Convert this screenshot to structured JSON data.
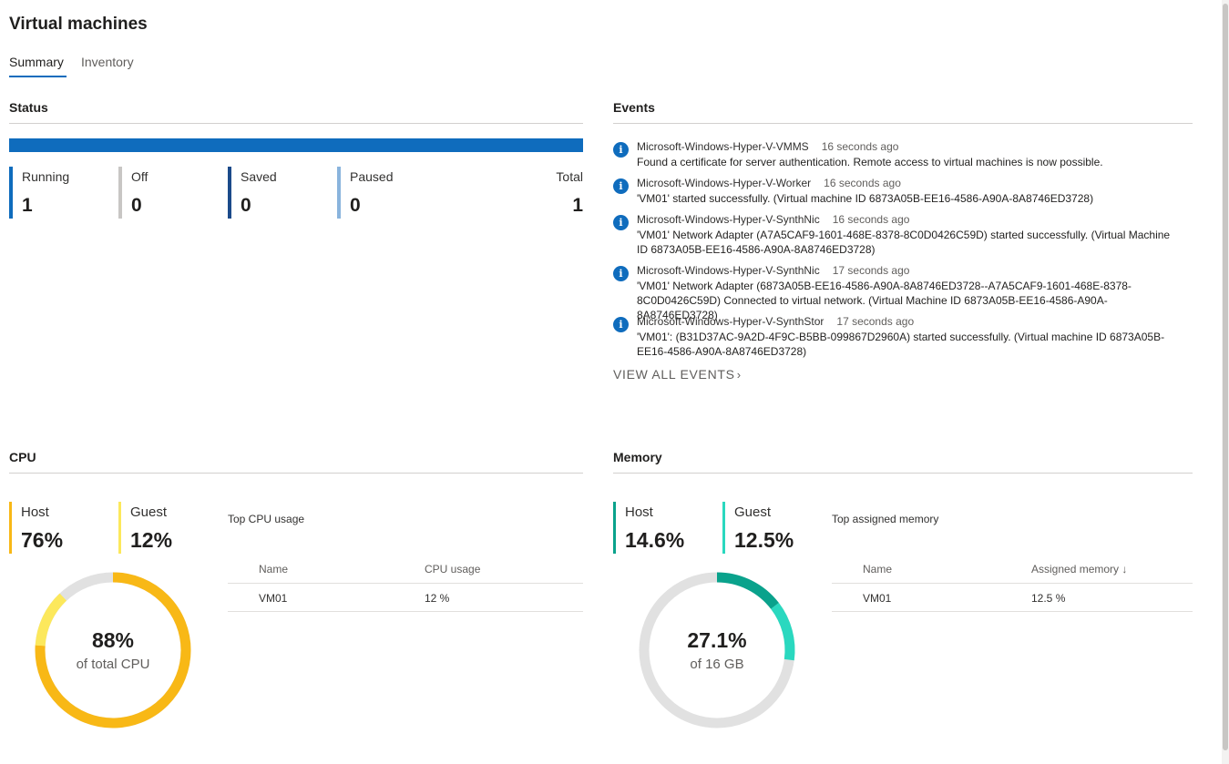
{
  "page": {
    "title": "Virtual machines"
  },
  "tabs": [
    {
      "label": "Summary",
      "active": true
    },
    {
      "label": "Inventory",
      "active": false
    }
  ],
  "status": {
    "title": "Status",
    "items": [
      {
        "label": "Running",
        "value": "1",
        "color": "#0f6cbd"
      },
      {
        "label": "Off",
        "value": "0",
        "color": "#c8c6c4"
      },
      {
        "label": "Saved",
        "value": "0",
        "color": "#1b4a8a"
      },
      {
        "label": "Paused",
        "value": "0",
        "color": "#8ab4dd"
      }
    ],
    "total": {
      "label": "Total",
      "value": "1"
    },
    "bar_color": "#0f6cbd"
  },
  "events": {
    "title": "Events",
    "items": [
      {
        "source": "Microsoft-Windows-Hyper-V-VMMS",
        "time": "16 seconds ago",
        "message": "Found a certificate for server authentication. Remote access to virtual machines is now possible."
      },
      {
        "source": "Microsoft-Windows-Hyper-V-Worker",
        "time": "16 seconds ago",
        "message": "'VM01' started successfully. (Virtual machine ID 6873A05B-EE16-4586-A90A-8A8746ED3728)"
      },
      {
        "source": "Microsoft-Windows-Hyper-V-SynthNic",
        "time": "16 seconds ago",
        "message": "'VM01' Network Adapter (A7A5CAF9-1601-468E-8378-8C0D0426C59D) started successfully. (Virtual Machine ID 6873A05B-EE16-4586-A90A-8A8746ED3728)"
      },
      {
        "source": "Microsoft-Windows-Hyper-V-SynthNic",
        "time": "17 seconds ago",
        "message": "'VM01' Network Adapter (6873A05B-EE16-4586-A90A-8A8746ED3728--A7A5CAF9-1601-468E-8378-8C0D0426C59D) Connected to virtual network. (Virtual Machine ID 6873A05B-EE16-4586-A90A-8A8746ED3728)"
      },
      {
        "source": "Microsoft-Windows-Hyper-V-SynthStor",
        "time": "17 seconds ago",
        "message": "'VM01': (B31D37AC-9A2D-4F9C-B5BB-099867D2960A) started successfully. (Virtual machine ID 6873A05B-EE16-4586-A90A-8A8746ED3728)"
      }
    ],
    "icon": "info-icon",
    "view_all": "VIEW ALL EVENTS"
  },
  "cpu": {
    "title": "CPU",
    "host": {
      "label": "Host",
      "value": "76%",
      "fraction": 0.76,
      "color": "#f8b816"
    },
    "guest": {
      "label": "Guest",
      "value": "12%",
      "fraction": 0.12,
      "color": "#fce85c"
    },
    "center_value": "88%",
    "center_label": "of total CPU",
    "top_title": "Top CPU usage",
    "columns": [
      "Name",
      "CPU usage"
    ],
    "rows": [
      [
        "VM01",
        "12 %"
      ]
    ]
  },
  "memory": {
    "title": "Memory",
    "host": {
      "label": "Host",
      "value": "14.6%",
      "fraction": 0.146,
      "color": "#0aa28c"
    },
    "guest": {
      "label": "Guest",
      "value": "12.5%",
      "fraction": 0.125,
      "color": "#2ad8bf"
    },
    "center_value": "27.1%",
    "center_label": "of 16 GB",
    "top_title": "Top assigned memory",
    "columns": [
      "Name",
      "Assigned memory ↓"
    ],
    "rows": [
      [
        "VM01",
        "12.5 %"
      ]
    ]
  },
  "donut_track_color": "#e1e1e1"
}
